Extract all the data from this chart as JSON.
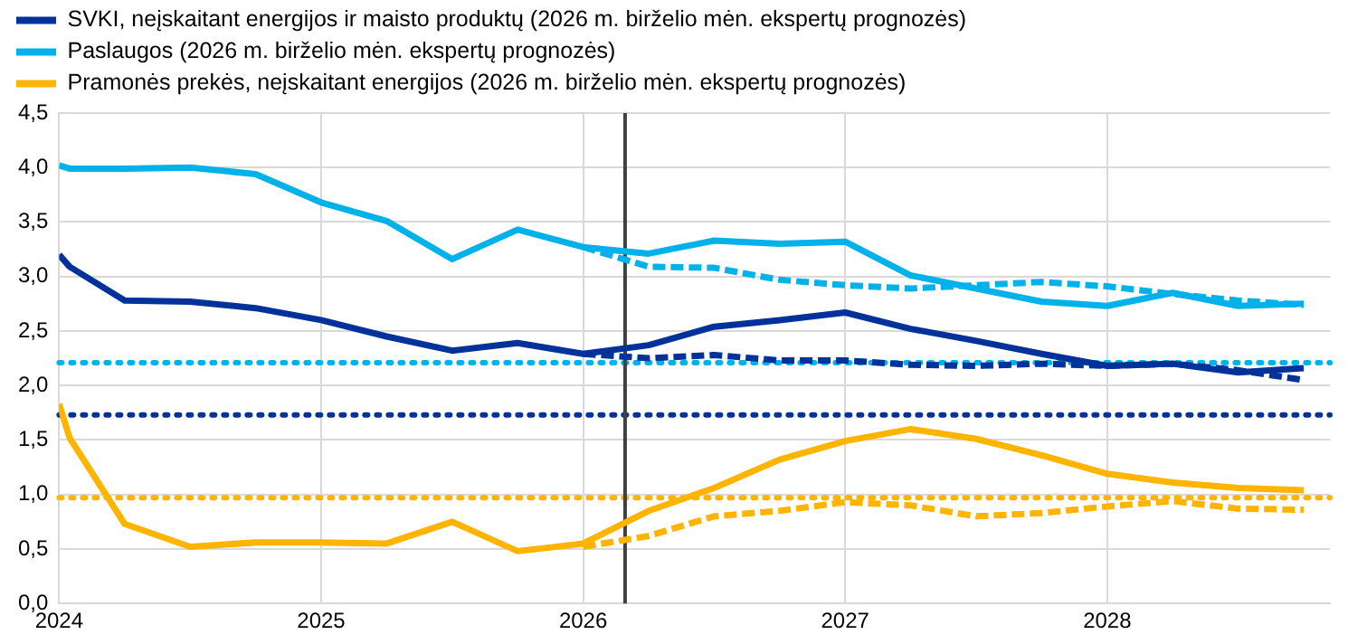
{
  "chart_data": {
    "type": "line",
    "legend": "top left",
    "grid": true,
    "line_style": "solid",
    "marker": "none",
    "xlim": [
      2024,
      2028.85
    ],
    "xticks": [
      2024,
      2025,
      2026,
      2027,
      2028
    ],
    "ylim": [
      0,
      4.5
    ],
    "yticks": [
      {
        "value": 0,
        "label": "0,0"
      },
      {
        "value": 0.5,
        "label": "0,5"
      },
      {
        "value": 1,
        "label": "1,0"
      },
      {
        "value": 1.5,
        "label": "1,5"
      },
      {
        "value": 2,
        "label": "2,0"
      },
      {
        "value": 2.5,
        "label": "2,5"
      },
      {
        "value": 3,
        "label": "3,0"
      },
      {
        "value": 3.5,
        "label": "3,5"
      },
      {
        "value": 4,
        "label": "4,0"
      },
      {
        "value": 4.5,
        "label": "4,5"
      }
    ],
    "series": [
      {
        "name": "SVKI, neįskaitant energijos ir maisto produktų (2026 m. birželio mėn. ekspertų prognozės)",
        "color": "#003299",
        "x": [
          2024,
          2024.04,
          2024.25,
          2024.5,
          2024.75,
          2025,
          2025.25,
          2025.5,
          2025.75,
          2026,
          2026.25,
          2026.5,
          2026.75,
          2027,
          2027.25,
          2027.5,
          2027.75,
          2028,
          2028.25,
          2028.5,
          2028.75
        ],
        "values": [
          3.2,
          3.09,
          2.78,
          2.77,
          2.71,
          2.6,
          2.45,
          2.32,
          2.39,
          2.29,
          2.37,
          2.54,
          2.6,
          2.67,
          2.52,
          2.41,
          2.29,
          2.18,
          2.2,
          2.12,
          2.16
        ]
      },
      {
        "name": "Paslaugos (2026 m. birželio mėn. ekspertų prognozės)",
        "color": "#00b1ea",
        "x": [
          2024,
          2024.04,
          2024.25,
          2024.5,
          2024.75,
          2025,
          2025.25,
          2025.5,
          2025.75,
          2026,
          2026.25,
          2026.5,
          2026.75,
          2027,
          2027.25,
          2027.5,
          2027.75,
          2028,
          2028.25,
          2028.5,
          2028.75
        ],
        "values": [
          4.02,
          3.99,
          3.99,
          4.0,
          3.94,
          3.68,
          3.51,
          3.16,
          3.43,
          3.27,
          3.21,
          3.33,
          3.3,
          3.32,
          3.01,
          2.89,
          2.77,
          2.73,
          2.85,
          2.73,
          2.75
        ]
      },
      {
        "name": "Pramonės prekės, neįskaitant energijos (2026 m. birželio mėn. ekspertų prognozės)",
        "color": "#ffb400",
        "x": [
          2024,
          2024.04,
          2024.25,
          2024.5,
          2024.75,
          2025,
          2025.25,
          2025.5,
          2025.75,
          2026,
          2026.25,
          2026.5,
          2026.75,
          2027,
          2027.25,
          2027.5,
          2027.75,
          2028,
          2028.25,
          2028.5,
          2028.75
        ],
        "values": [
          1.83,
          1.52,
          0.73,
          0.52,
          0.56,
          0.56,
          0.55,
          0.75,
          0.48,
          0.55,
          0.85,
          1.06,
          1.32,
          1.49,
          1.6,
          1.51,
          1.36,
          1.19,
          1.11,
          1.06,
          1.04
        ]
      },
      {
        "color": "#003299",
        "line_style": "dashed",
        "x": [
          2026,
          2026.25,
          2026.5,
          2026.75,
          2027,
          2027.25,
          2027.5,
          2027.75,
          2028,
          2028.25,
          2028.5,
          2028.75
        ],
        "values": [
          2.29,
          2.25,
          2.28,
          2.23,
          2.23,
          2.19,
          2.18,
          2.2,
          2.18,
          2.2,
          2.14,
          2.05
        ]
      },
      {
        "color": "#00b1ea",
        "line_style": "dashed",
        "x": [
          2026,
          2026.25,
          2026.5,
          2026.75,
          2027,
          2027.25,
          2027.5,
          2027.75,
          2028,
          2028.25,
          2028.5,
          2028.75
        ],
        "values": [
          3.27,
          3.09,
          3.08,
          2.97,
          2.92,
          2.89,
          2.92,
          2.95,
          2.91,
          2.84,
          2.78,
          2.74
        ]
      },
      {
        "color": "#ffb400",
        "line_style": "dashed",
        "x": [
          2026,
          2026.25,
          2026.5,
          2026.75,
          2027,
          2027.25,
          2027.5,
          2027.75,
          2028,
          2028.25,
          2028.5,
          2028.75
        ],
        "values": [
          0.52,
          0.62,
          0.8,
          0.85,
          0.93,
          0.9,
          0.8,
          0.83,
          0.89,
          0.94,
          0.87,
          0.86
        ]
      }
    ],
    "ref_lines": [
      {
        "axis": "y",
        "value": 2.21,
        "color": "#00b1ea",
        "line_style": "dotted"
      },
      {
        "axis": "y",
        "value": 1.73,
        "color": "#003299",
        "line_style": "dotted"
      },
      {
        "axis": "y",
        "value": 0.97,
        "color": "#ffb400",
        "line_style": "dotted"
      },
      {
        "axis": "x",
        "value": 2026.16,
        "color": "#404040",
        "line_style": "solid"
      }
    ]
  }
}
